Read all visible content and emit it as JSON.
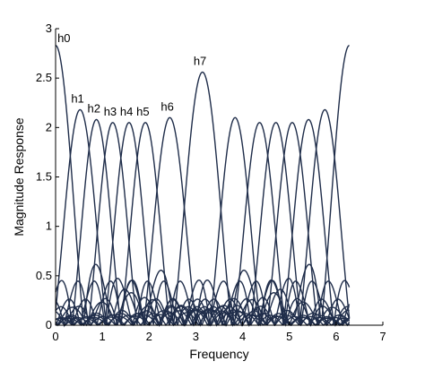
{
  "chart_data": {
    "type": "line",
    "title": "",
    "xlabel": "Frequency",
    "ylabel": "Magnitude Response",
    "xlim": [
      0,
      7
    ],
    "ylim": [
      0,
      3
    ],
    "x_ticks": [
      "0",
      "1",
      "2",
      "3",
      "4",
      "5",
      "6",
      "7"
    ],
    "y_ticks": [
      "0",
      "0.5",
      "1",
      "1.5",
      "2",
      "2.5",
      "3"
    ],
    "grid": false,
    "line_color": "#1f2d4a",
    "series": [
      {
        "name": "h0",
        "peak_x": 0.0,
        "peak_y": 2.83,
        "width": 0.6,
        "mirror_peak_x": 6.283
      },
      {
        "name": "h1",
        "peak_x": 0.524,
        "peak_y": 2.18,
        "width": 0.56
      },
      {
        "name": "h2",
        "peak_x": 0.873,
        "peak_y": 2.08,
        "width": 0.52
      },
      {
        "name": "h3",
        "peak_x": 1.222,
        "peak_y": 2.05,
        "width": 0.52
      },
      {
        "name": "h4",
        "peak_x": 1.571,
        "peak_y": 2.05,
        "width": 0.52
      },
      {
        "name": "h5",
        "peak_x": 1.92,
        "peak_y": 2.05,
        "width": 0.52
      },
      {
        "name": "h6",
        "peak_x": 2.443,
        "peak_y": 2.1,
        "width": 0.56
      },
      {
        "name": "h7",
        "peak_x": 3.142,
        "peak_y": 2.56,
        "width": 0.62
      }
    ],
    "mirrored_series_peaks_x": [
      3.84,
      4.363,
      4.712,
      5.061,
      5.411,
      5.76
    ],
    "mirrored_series_peaks_y": [
      2.1,
      2.05,
      2.05,
      2.05,
      2.08,
      2.18
    ],
    "sidelobe_level_max": 0.7
  }
}
